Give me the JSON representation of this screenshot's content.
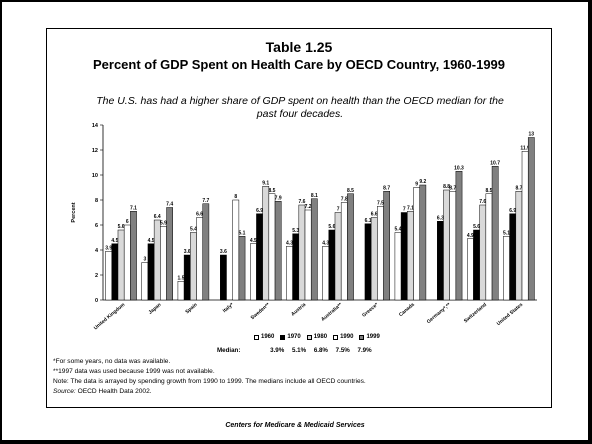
{
  "title": "Table 1.25",
  "subtitle_line": "Percent of GDP Spent on Health Care by OECD Country, 1960-1999",
  "caption": "The U.S. has had a higher share of GDP spent on health than the OECD median for the past four decades.",
  "colors": {
    "1960": "#ffffff",
    "1970": "#000000",
    "1980": "#d9d9d9",
    "1990": "#ffffff",
    "1999": "#808080"
  },
  "chart_data": {
    "type": "bar",
    "ylabel": "Percent",
    "ylim": [
      0,
      14
    ],
    "yticks": [
      0,
      2,
      4,
      6,
      8,
      10,
      12,
      14
    ],
    "categories": [
      "United Kingdom",
      "Japan",
      "Spain",
      "Italy*",
      "Sweden**",
      "Austria",
      "Australia**",
      "Greece*",
      "Canada",
      "Germany*,**",
      "Switzerland",
      "United States"
    ],
    "series": [
      {
        "name": "1960",
        "values": [
          3.9,
          3.0,
          1.5,
          null,
          4.5,
          4.3,
          4.3,
          null,
          5.4,
          null,
          4.9,
          5.1
        ]
      },
      {
        "name": "1970",
        "values": [
          4.5,
          4.5,
          3.6,
          3.6,
          6.9,
          5.3,
          5.6,
          6.1,
          7.0,
          6.3,
          5.6,
          6.9
        ]
      },
      {
        "name": "1980",
        "values": [
          5.6,
          6.4,
          5.4,
          null,
          9.1,
          7.6,
          7.0,
          6.6,
          7.1,
          8.8,
          7.6,
          8.7
        ]
      },
      {
        "name": "1990",
        "values": [
          6.0,
          5.9,
          6.6,
          8.0,
          8.5,
          7.2,
          7.8,
          7.5,
          9.0,
          8.7,
          8.5,
          11.9
        ]
      },
      {
        "name": "1999",
        "values": [
          7.1,
          7.4,
          7.7,
          5.1,
          7.9,
          8.1,
          8.5,
          8.7,
          9.2,
          10.3,
          10.7,
          13.0
        ]
      }
    ],
    "data_labels": [
      [
        "3.9",
        "4.5",
        "5.6",
        "6",
        "7.1"
      ],
      [
        "3",
        "4.5",
        "6.4",
        "5.9",
        "7.4"
      ],
      [
        "1.5",
        "3.6",
        "5.4",
        "6.6",
        "7.7"
      ],
      [
        null,
        "3.6",
        null,
        "8",
        "5.1"
      ],
      [
        "4.5",
        "6.9",
        "9.1",
        "8.5",
        "7.9"
      ],
      [
        "4.3",
        "5.3",
        "7.6",
        "7.2",
        "8.1"
      ],
      [
        "4.3",
        "5.6",
        "7",
        "7.8",
        "8.5"
      ],
      [
        null,
        "6.1",
        "6.6",
        "7.5",
        "8.7"
      ],
      [
        "5.4",
        "7",
        "7.1",
        "9",
        "9.2"
      ],
      [
        null,
        "6.3",
        "8.8",
        "8.7",
        "10.3"
      ],
      [
        "4.9",
        "5.6",
        "7.6",
        "8.5",
        "10.7"
      ],
      [
        "5.1",
        "6.9",
        "8.7",
        "11.9",
        "13"
      ]
    ],
    "top_labels": [
      "",
      "",
      "",
      "8",
      "",
      "",
      "",
      "",
      "",
      "",
      "",
      ""
    ],
    "extra_label_italy": "8",
    "legend": [
      "1960",
      "1970",
      "1980",
      "1990",
      "1999"
    ],
    "legend_placement": "bottom"
  },
  "median": {
    "label": "Median:",
    "values": [
      "3.9%",
      "5.1%",
      "6.8%",
      "7.5%",
      "7.9%"
    ]
  },
  "notes": [
    "*For some years, no data was available.",
    "**1997 data was used because 1999 was not available.",
    "Note: The data is arrayed by spending growth from 1990 to 1999. The medians include all OECD countries."
  ],
  "source": {
    "label": "Source:",
    "text": " OECD Health Data 2002."
  },
  "footer": "Centers for Medicare & Medicaid Services"
}
